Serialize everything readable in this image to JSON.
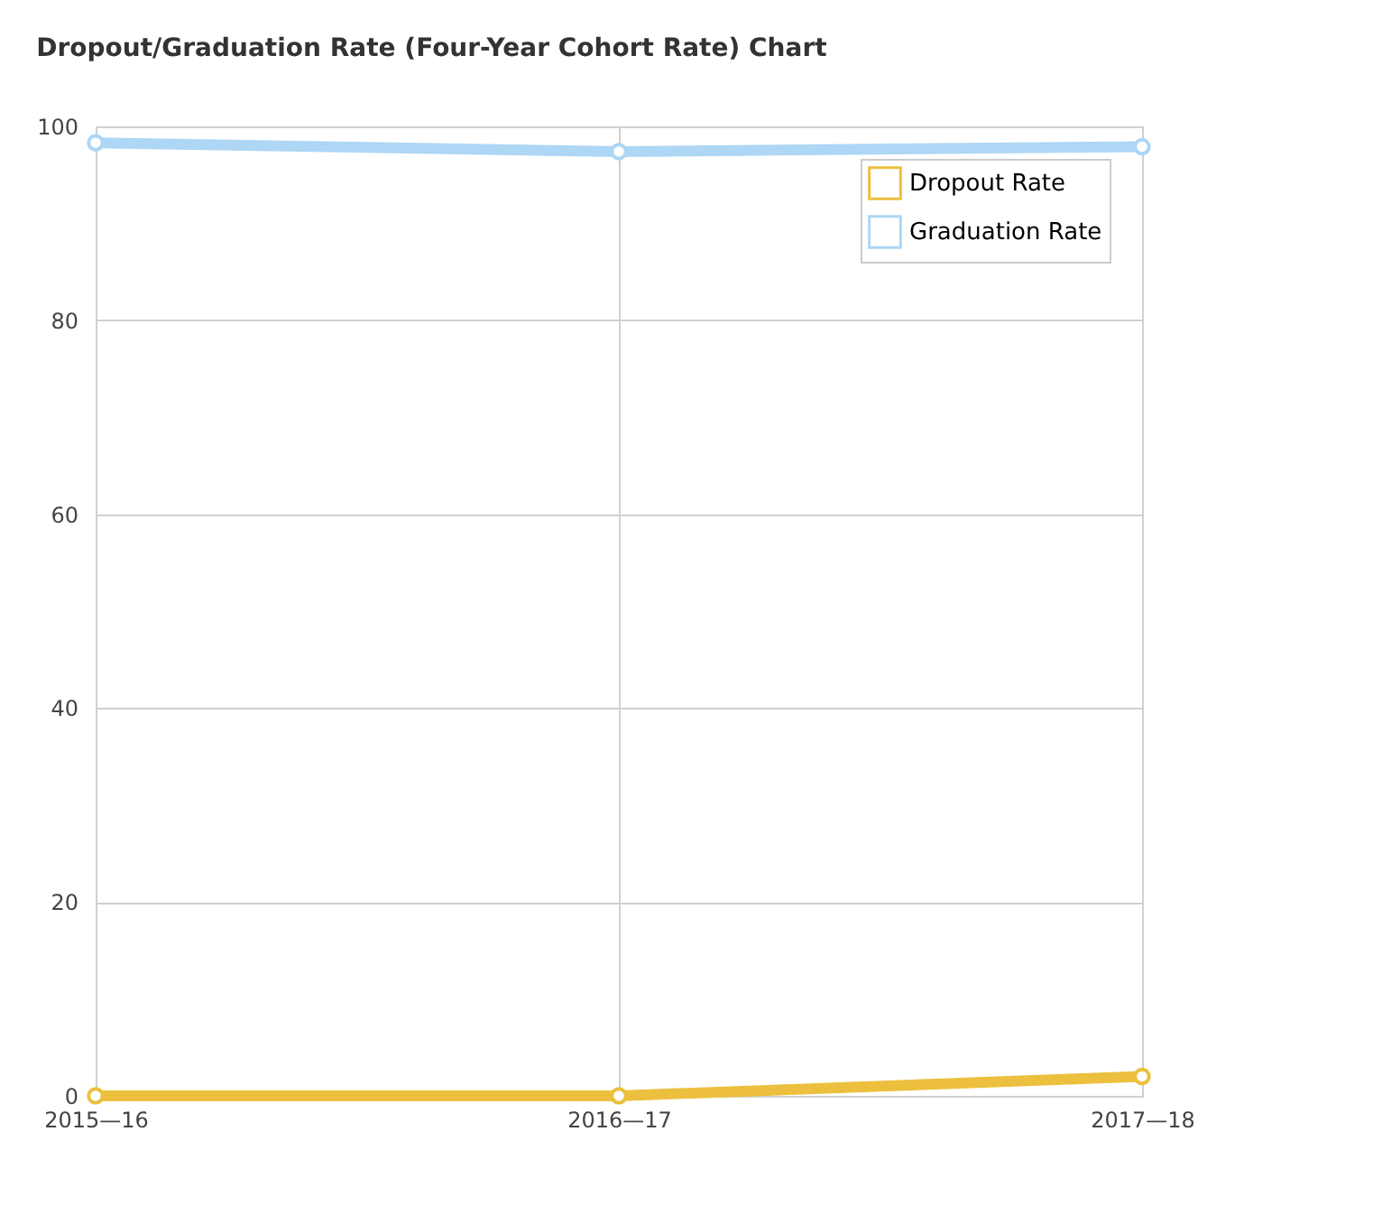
{
  "chart_data": {
    "type": "line",
    "title": "Dropout/Graduation Rate (Four-Year Cohort Rate) Chart",
    "categories": [
      "2015—16",
      "2016—17",
      "2017—18"
    ],
    "series": [
      {
        "name": "Dropout Rate",
        "color": "#ecc03e",
        "values": [
          0,
          0,
          2
        ]
      },
      {
        "name": "Graduation Rate",
        "color": "#aed6f5",
        "values": [
          98.3,
          97.4,
          97.9
        ]
      }
    ],
    "ylim": [
      0,
      100
    ],
    "yticks": [
      0,
      20,
      40,
      60,
      80,
      100
    ],
    "grid": true,
    "legend": "top right",
    "marker": "circle",
    "line_style": "solid"
  }
}
